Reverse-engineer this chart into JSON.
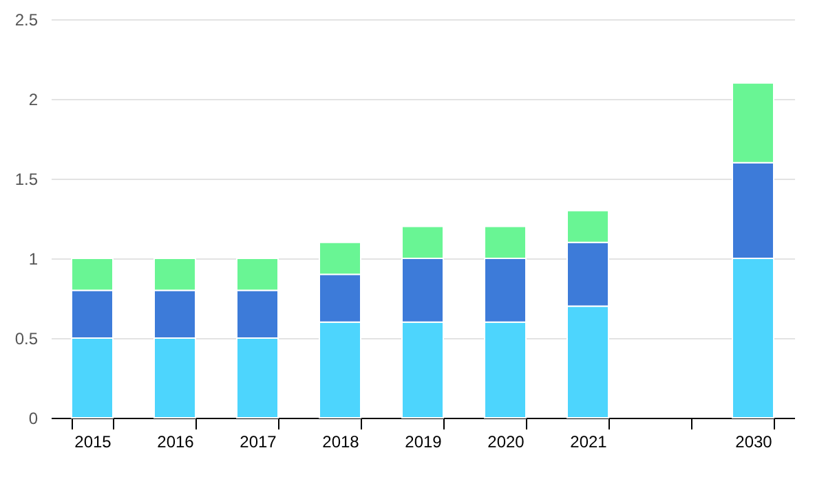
{
  "chart_data": {
    "type": "bar",
    "stacked": true,
    "categories": [
      "2015",
      "2016",
      "2017",
      "2018",
      "2019",
      "2020",
      "2021",
      null,
      "2030"
    ],
    "series": [
      {
        "color": "#4dd5fd",
        "values": [
          0.5,
          0.5,
          0.5,
          0.6,
          0.6,
          0.6,
          0.7,
          null,
          1.0
        ]
      },
      {
        "color": "#3d7bd9",
        "values": [
          0.3,
          0.3,
          0.3,
          0.3,
          0.4,
          0.4,
          0.4,
          null,
          0.6
        ]
      },
      {
        "color": "#69f594",
        "values": [
          0.2,
          0.2,
          0.2,
          0.2,
          0.2,
          0.2,
          0.2,
          null,
          0.5
        ]
      }
    ],
    "ylim": [
      0,
      2.5
    ],
    "yticks": [
      0,
      0.5,
      1,
      1.5,
      2,
      2.5
    ],
    "grid": "y",
    "legend": false
  }
}
